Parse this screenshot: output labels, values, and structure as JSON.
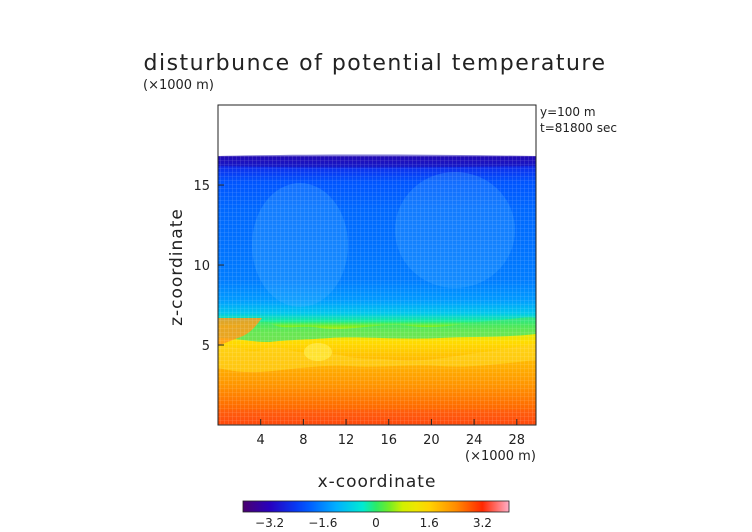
{
  "chart_data": {
    "type": "heatmap",
    "title": "disturbunce of potential temperature",
    "annotations": [
      "y=100 m",
      "t=81800 sec"
    ],
    "xlabel": "x-coordinate",
    "ylabel": "z-coordinate",
    "x_unit": "(×1000 m)",
    "y_unit": "(×1000 m)",
    "xlim": [
      0,
      29.8
    ],
    "ylim": [
      0,
      20
    ],
    "x_ticks": [
      4,
      8,
      12,
      16,
      20,
      24,
      28
    ],
    "y_ticks": [
      5,
      10,
      15
    ],
    "data_top": 16.8,
    "colorbar": {
      "min": -4,
      "max": 4,
      "ticks": [
        -3.2,
        -1.6,
        0,
        1.6,
        3.2
      ],
      "tick_labels": [
        "−3.2",
        "−1.6",
        "0",
        "1.6",
        "3.2"
      ]
    },
    "profile": [
      {
        "z": 16.8,
        "value": -3.3
      },
      {
        "z": 16.5,
        "value": -3.0
      },
      {
        "z": 16.0,
        "value": -2.5
      },
      {
        "z": 15.2,
        "value": -2.1
      },
      {
        "z": 13.5,
        "value": -1.9
      },
      {
        "z": 11.0,
        "value": -1.8
      },
      {
        "z": 9.0,
        "value": -1.7
      },
      {
        "z": 7.8,
        "value": -1.4
      },
      {
        "z": 7.0,
        "value": -0.9
      },
      {
        "z": 6.5,
        "value": -0.2
      },
      {
        "z": 6.2,
        "value": 0.4
      },
      {
        "z": 5.8,
        "value": 1.0
      },
      {
        "z": 5.2,
        "value": 1.5
      },
      {
        "z": 4.0,
        "value": 1.9
      },
      {
        "z": 2.5,
        "value": 2.3
      },
      {
        "z": 1.0,
        "value": 2.7
      },
      {
        "z": 0.0,
        "value": 3.0
      }
    ]
  }
}
